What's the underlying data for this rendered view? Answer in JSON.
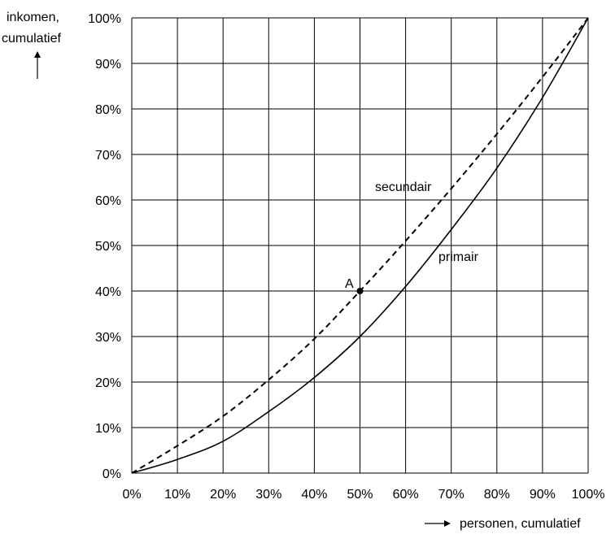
{
  "chart_data": {
    "type": "line",
    "xlabel": "personen, cumulatief",
    "ylabel_line1": "inkomen,",
    "ylabel_line2": "cumulatief",
    "xlim": [
      0,
      100
    ],
    "ylim": [
      0,
      100
    ],
    "x_ticks": [
      "0%",
      "10%",
      "20%",
      "30%",
      "40%",
      "50%",
      "60%",
      "70%",
      "80%",
      "90%",
      "100%"
    ],
    "y_ticks": [
      "0%",
      "10%",
      "20%",
      "30%",
      "40%",
      "50%",
      "60%",
      "70%",
      "80%",
      "90%",
      "100%"
    ],
    "grid": true,
    "series": [
      {
        "name": "primair",
        "style": "solid",
        "x": [
          0,
          10,
          20,
          30,
          40,
          50,
          60,
          70,
          80,
          90,
          100
        ],
        "y": [
          0,
          3,
          7,
          13.5,
          21,
          30,
          41,
          53.5,
          67,
          82.5,
          100
        ]
      },
      {
        "name": "secundair",
        "style": "dashed",
        "x": [
          0,
          10,
          20,
          30,
          40,
          50,
          60,
          70,
          80,
          90,
          100
        ],
        "y": [
          0,
          6,
          12.5,
          20.5,
          29.5,
          40,
          51,
          62.5,
          74.5,
          87,
          100
        ]
      }
    ],
    "point": {
      "label": "A",
      "x": 50,
      "y": 40
    },
    "colors": {
      "line": "#000000",
      "grid": "#000000"
    }
  }
}
